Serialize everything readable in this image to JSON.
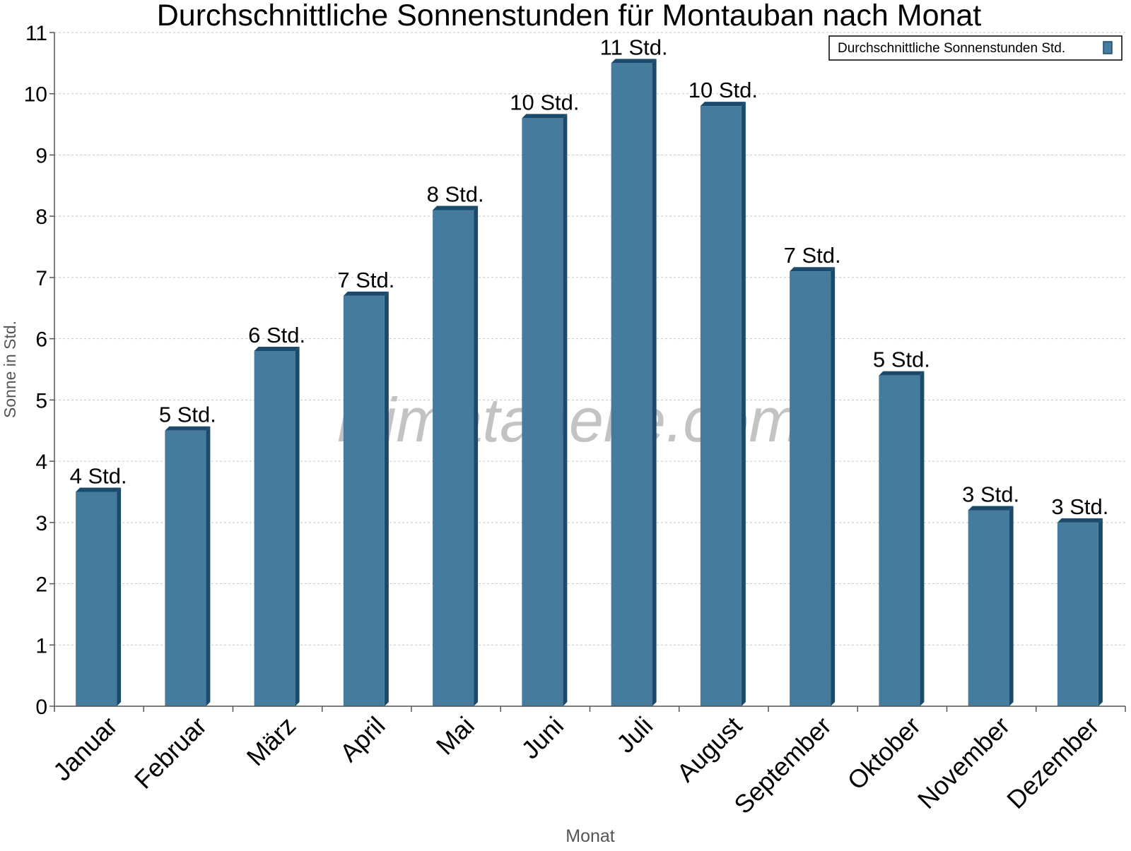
{
  "chart_data": {
    "type": "bar",
    "title": "Durchschnittliche Sonnenstunden für Montauban nach Monat",
    "xlabel": "Monat",
    "ylabel": "Sonne in Std.",
    "ylim": [
      0,
      11
    ],
    "yticks": [
      "0",
      "1",
      "2",
      "3",
      "4",
      "5",
      "6",
      "7",
      "8",
      "9",
      "10",
      "11"
    ],
    "grid": true,
    "legend_position": "top-right",
    "watermark": "klimatabelle.com",
    "categories": [
      "Januar",
      "Februar",
      "März",
      "April",
      "Mai",
      "Juni",
      "Juli",
      "August",
      "September",
      "Oktober",
      "November",
      "Dezember"
    ],
    "series": [
      {
        "name": "Durchschnittliche Sonnenstunden Std.",
        "values": [
          3.5,
          4.5,
          5.8,
          6.7,
          8.1,
          9.6,
          10.5,
          9.8,
          7.1,
          5.4,
          3.2,
          3.0
        ],
        "data_labels": [
          "4 Std.",
          "5 Std.",
          "6 Std.",
          "7 Std.",
          "8 Std.",
          "10 Std.",
          "11 Std.",
          "10 Std.",
          "7 Std.",
          "5 Std.",
          "3 Std.",
          "3 Std."
        ],
        "color": "#457b9d",
        "edge_color": "#1b4a6b"
      }
    ]
  }
}
